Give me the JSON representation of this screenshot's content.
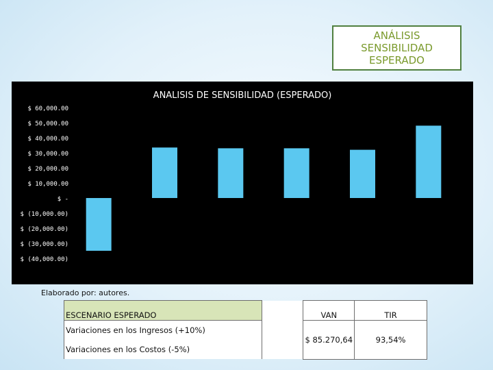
{
  "title_box": {
    "lines": [
      "ANÁLISIS",
      "SENSIBILIDAD",
      "ESPERADO"
    ]
  },
  "chart_data": {
    "type": "bar",
    "title": "ANALISIS DE SENSIBILIDAD (ESPERADO)",
    "xlabel": "",
    "ylabel": "",
    "categories": [
      "",
      "",
      "",
      "",
      "",
      ""
    ],
    "values": [
      -35000,
      33500,
      33000,
      33000,
      32000,
      48000
    ],
    "ylim": [
      -40000,
      60000
    ],
    "yticks": [
      60000,
      50000,
      40000,
      30000,
      20000,
      10000,
      0,
      -10000,
      -20000,
      -30000,
      -40000
    ],
    "ytick_labels": [
      "$ 60,000.00",
      "$ 50,000.00",
      "$ 40,000.00",
      "$ 30,000.00",
      "$ 20,000.00",
      "$ 10,000.00",
      "$ -",
      "$ (10,000.00)",
      "$ (20,000.00)",
      "$ (30,000.00)",
      "$ (40,000.00)"
    ],
    "grid": false,
    "legend": "none",
    "colors": {
      "background": "#000000",
      "bar": "#5bc8f0",
      "text": "#ffffff"
    }
  },
  "caption": "Elaborado por: autores.",
  "table": {
    "header": {
      "scenario": "ESCENARIO ESPERADO",
      "van": "VAN",
      "tir": "TIR"
    },
    "rows": [
      "Variaciones en los Ingresos (+10%)",
      "Variaciones en los Costos (-5%)"
    ],
    "values": {
      "van": "$ 85.270,64",
      "tir": "93,54%"
    }
  }
}
